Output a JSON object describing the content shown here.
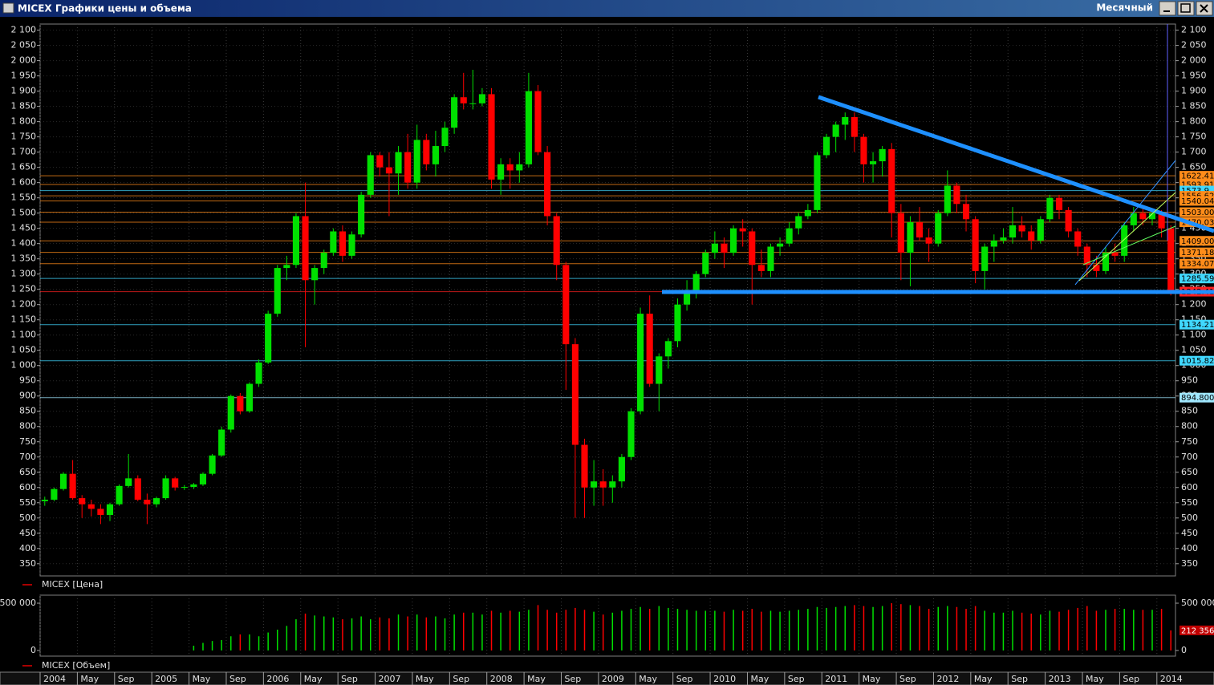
{
  "window": {
    "title": "MICEX Графики цены и объема",
    "period": "Месячный"
  },
  "chart_data": [
    {
      "type": "candlestick",
      "categories": [
        "2004",
        null,
        null,
        null,
        "May",
        null,
        null,
        null,
        "Sep",
        null,
        null,
        null,
        "2005",
        null,
        null,
        null,
        "May",
        null,
        null,
        null,
        "Sep",
        null,
        null,
        null,
        "2006",
        null,
        null,
        null,
        "May",
        null,
        null,
        null,
        "Sep",
        null,
        null,
        null,
        "2007",
        null,
        null,
        null,
        "May",
        null,
        null,
        null,
        "Sep",
        null,
        null,
        null,
        "2008",
        null,
        null,
        null,
        "May",
        null,
        null,
        null,
        "Sep",
        null,
        null,
        null,
        "2009",
        null,
        null,
        null,
        "May",
        null,
        null,
        null,
        "Sep",
        null,
        null,
        null,
        "2010",
        null,
        null,
        null,
        "May",
        null,
        null,
        null,
        "Sep",
        null,
        null,
        null,
        "2011",
        null,
        null,
        null,
        "May",
        null,
        null,
        null,
        "Sep",
        null,
        null,
        null,
        "2012",
        null,
        null,
        null,
        "May",
        null,
        null,
        null,
        "Sep",
        null,
        null,
        null,
        "2013",
        null,
        null,
        null,
        "May",
        null,
        null,
        null,
        "Sep",
        null,
        null,
        null,
        "2014",
        null
      ],
      "series": [
        {
          "name": "MICEX [Цена]",
          "color": "#e00000",
          "open": [
            555,
            560,
            595,
            645,
            565,
            545,
            530,
            510,
            545,
            605,
            630,
            560,
            545,
            565,
            630,
            600,
            602,
            610,
            645,
            705,
            790,
            900,
            850,
            940,
            1010,
            1170,
            1320,
            1330,
            1490,
            1280,
            1320,
            1370,
            1440,
            1360,
            1430,
            1560,
            1690,
            1650,
            1630,
            1700,
            1600,
            1740,
            1660,
            1720,
            1780,
            1880,
            1860,
            1860,
            1890,
            1610,
            1660,
            1640,
            1660,
            1900,
            1700,
            1490,
            1330,
            1070,
            740,
            600,
            620,
            600,
            620,
            700,
            850,
            1170,
            940,
            1030,
            1080,
            1200,
            1240,
            1300,
            1370,
            1400,
            1370,
            1450,
            1440,
            1330,
            1310,
            1390,
            1400,
            1450,
            1490,
            1510,
            1690,
            1750,
            1790,
            1815,
            1750,
            1660,
            1670,
            1710,
            1500,
            1370,
            1470,
            1420,
            1400,
            1500,
            1590,
            1530,
            1480,
            1310,
            1390,
            1410,
            1420,
            1460,
            1440,
            1410,
            1480,
            1550,
            1510,
            1440,
            1390,
            1330,
            1310,
            1370,
            1360,
            1460,
            1500,
            1480,
            1500,
            1450
          ],
          "high": [
            570,
            600,
            650,
            690,
            575,
            560,
            545,
            550,
            610,
            710,
            640,
            580,
            570,
            640,
            635,
            608,
            615,
            650,
            710,
            800,
            905,
            910,
            945,
            1020,
            1180,
            1330,
            1360,
            1500,
            1600,
            1330,
            1380,
            1450,
            1460,
            1440,
            1570,
            1700,
            1700,
            1700,
            1720,
            1760,
            1790,
            1760,
            1770,
            1800,
            1890,
            1960,
            1970,
            1910,
            1910,
            1680,
            1680,
            1700,
            1960,
            1920,
            1720,
            1500,
            1340,
            1090,
            760,
            690,
            660,
            640,
            710,
            860,
            1190,
            1230,
            1040,
            1090,
            1220,
            1280,
            1310,
            1380,
            1440,
            1420,
            1460,
            1480,
            1450,
            1380,
            1400,
            1420,
            1470,
            1500,
            1530,
            1700,
            1760,
            1800,
            1830,
            1830,
            1760,
            1700,
            1720,
            1730,
            1530,
            1490,
            1520,
            1450,
            1510,
            1640,
            1600,
            1560,
            1490,
            1400,
            1430,
            1450,
            1520,
            1490,
            1460,
            1490,
            1560,
            1560,
            1520,
            1450,
            1400,
            1360,
            1390,
            1400,
            1470,
            1520,
            1520,
            1510,
            1510,
            1460
          ],
          "low": [
            540,
            555,
            590,
            560,
            500,
            505,
            480,
            490,
            540,
            600,
            555,
            480,
            535,
            560,
            590,
            592,
            595,
            605,
            640,
            700,
            780,
            840,
            845,
            930,
            1005,
            1160,
            1280,
            1320,
            1060,
            1200,
            1300,
            1360,
            1340,
            1350,
            1420,
            1550,
            1620,
            1490,
            1560,
            1580,
            1580,
            1640,
            1620,
            1700,
            1760,
            1840,
            1840,
            1850,
            1580,
            1560,
            1580,
            1600,
            1650,
            1690,
            1460,
            1280,
            920,
            500,
            500,
            540,
            540,
            550,
            600,
            690,
            840,
            930,
            850,
            990,
            1060,
            1180,
            1220,
            1290,
            1350,
            1320,
            1360,
            1390,
            1200,
            1290,
            1290,
            1360,
            1390,
            1430,
            1480,
            1500,
            1680,
            1700,
            1740,
            1700,
            1600,
            1600,
            1620,
            1420,
            1280,
            1260,
            1410,
            1340,
            1390,
            1490,
            1500,
            1440,
            1270,
            1250,
            1340,
            1400,
            1400,
            1420,
            1380,
            1400,
            1470,
            1480,
            1420,
            1360,
            1290,
            1290,
            1300,
            1340,
            1340,
            1440,
            1460,
            1460,
            1420,
            1230
          ],
          "close": [
            560,
            595,
            645,
            565,
            545,
            530,
            510,
            545,
            605,
            630,
            560,
            545,
            565,
            630,
            600,
            602,
            610,
            645,
            705,
            790,
            900,
            850,
            940,
            1010,
            1170,
            1320,
            1330,
            1490,
            1280,
            1320,
            1370,
            1440,
            1360,
            1430,
            1560,
            1690,
            1650,
            1630,
            1700,
            1600,
            1740,
            1660,
            1720,
            1780,
            1880,
            1860,
            1860,
            1890,
            1610,
            1660,
            1640,
            1660,
            1900,
            1700,
            1490,
            1330,
            1070,
            740,
            600,
            620,
            600,
            620,
            700,
            850,
            1170,
            940,
            1030,
            1080,
            1200,
            1240,
            1300,
            1370,
            1400,
            1370,
            1450,
            1440,
            1330,
            1310,
            1390,
            1400,
            1450,
            1490,
            1510,
            1690,
            1750,
            1790,
            1815,
            1750,
            1660,
            1670,
            1710,
            1500,
            1370,
            1470,
            1420,
            1400,
            1500,
            1590,
            1530,
            1480,
            1310,
            1390,
            1410,
            1420,
            1460,
            1440,
            1410,
            1480,
            1550,
            1510,
            1440,
            1390,
            1330,
            1310,
            1370,
            1360,
            1460,
            1500,
            1480,
            1500,
            1450,
            1240
          ]
        }
      ],
      "up_color": "#00e000",
      "down_color": "#ff0000",
      "ylim": [
        310,
        2120
      ],
      "yticks": [
        350,
        400,
        450,
        500,
        550,
        600,
        650,
        700,
        750,
        800,
        850,
        900,
        950,
        {
          "value": 1000,
          "label": "1 000"
        },
        {
          "value": 1050,
          "label": "1 050"
        },
        {
          "value": 1100,
          "label": "1 100"
        },
        {
          "value": 1150,
          "label": "1 150"
        },
        {
          "value": 1200,
          "label": "1 200"
        },
        {
          "value": 1250,
          "label": "1 250"
        },
        {
          "value": 1300,
          "label": "1 300"
        },
        {
          "value": 1350,
          "label": "1 350"
        },
        {
          "value": 1400,
          "label": "1 400"
        },
        {
          "value": 1450,
          "label": "1 450"
        },
        {
          "value": 1500,
          "label": "1 500"
        },
        {
          "value": 1550,
          "label": "1 550"
        },
        {
          "value": 1600,
          "label": "1 600"
        },
        {
          "value": 1650,
          "label": "1 650"
        },
        {
          "value": 1700,
          "label": "1 700"
        },
        {
          "value": 1750,
          "label": "1 750"
        },
        {
          "value": 1800,
          "label": "1 800"
        },
        {
          "value": 1850,
          "label": "1 850"
        },
        {
          "value": 1900,
          "label": "1 900"
        },
        {
          "value": 1950,
          "label": "1 950"
        },
        {
          "value": 2000,
          "label": "2 000"
        },
        {
          "value": 2050,
          "label": "2 050"
        },
        {
          "value": 2100,
          "label": "2 100"
        }
      ],
      "grid": true,
      "levels": [
        {
          "value": 1622.41,
          "color": "#ff8c1a"
        },
        {
          "value": 1593.91,
          "color": "#ff8c1a"
        },
        {
          "value": 1573.9,
          "color": "#40d8ff"
        },
        {
          "value": 1556.62,
          "color": "#ff8c1a"
        },
        {
          "value": 1540.04,
          "color": "#ff8c1a"
        },
        {
          "value": {
            "value": 1503,
            "label": "1503.00"
          },
          "color": "#ff8c1a"
        },
        {
          "value": 1470.03,
          "color": "#ff8c1a"
        },
        {
          "value": {
            "value": 1409,
            "label": "1409.00"
          },
          "color": "#ff8c1a"
        },
        {
          "value": 1371.18,
          "color": "#ff8c1a"
        },
        {
          "value": 1334.07,
          "color": "#ff8c1a"
        },
        {
          "value": 1285.59,
          "color": "#40d8ff"
        },
        {
          "value": 1242.41,
          "color": "#ff2020"
        },
        {
          "value": 1134.21,
          "color": "#40d8ff"
        },
        {
          "value": 1015.82,
          "color": "#40d8ff"
        },
        {
          "value": {
            "value": 894.8,
            "label": "894.800"
          },
          "color": "#a0e8ff"
        }
      ]
    },
    {
      "type": "bar",
      "series": [
        {
          "name": "MICEX [Объем]",
          "color": "#e00000",
          "values": [
            null,
            null,
            null,
            null,
            null,
            null,
            null,
            null,
            null,
            null,
            null,
            null,
            null,
            null,
            null,
            null,
            50000,
            80000,
            100000,
            110000,
            150000,
            170000,
            170000,
            150000,
            190000,
            220000,
            260000,
            330000,
            390000,
            370000,
            360000,
            350000,
            330000,
            340000,
            360000,
            330000,
            350000,
            340000,
            380000,
            360000,
            380000,
            350000,
            360000,
            340000,
            380000,
            400000,
            400000,
            380000,
            420000,
            400000,
            420000,
            410000,
            430000,
            480000,
            430000,
            400000,
            430000,
            450000,
            430000,
            410000,
            380000,
            400000,
            420000,
            440000,
            460000,
            440000,
            470000,
            450000,
            440000,
            430000,
            420000,
            420000,
            420000,
            410000,
            430000,
            420000,
            440000,
            410000,
            420000,
            410000,
            420000,
            430000,
            440000,
            460000,
            450000,
            460000,
            470000,
            480000,
            470000,
            460000,
            470000,
            500000,
            490000,
            480000,
            470000,
            440000,
            460000,
            470000,
            460000,
            440000,
            470000,
            420000,
            400000,
            400000,
            420000,
            400000,
            390000,
            380000,
            420000,
            410000,
            430000,
            450000,
            470000,
            420000,
            430000,
            440000,
            440000,
            430000,
            430000,
            430000,
            440000,
            212356
          ],
          "value_labels": [
            null,
            null,
            null,
            null,
            null,
            null,
            null,
            null,
            null,
            null,
            null,
            null,
            null,
            null,
            null,
            null,
            null,
            null,
            null,
            null,
            null,
            null,
            null,
            null,
            null,
            null,
            null,
            null,
            null,
            null,
            null,
            null,
            null,
            null,
            null,
            null,
            null,
            null,
            null,
            null,
            null,
            null,
            null,
            null,
            null,
            null,
            null,
            null,
            null,
            null,
            null,
            null,
            null,
            null,
            null,
            null,
            null,
            null,
            null,
            null,
            null,
            null,
            null,
            null,
            null,
            null,
            null,
            null,
            null,
            null,
            null,
            null,
            null,
            null,
            null,
            null,
            null,
            null,
            null,
            null,
            null,
            null,
            null,
            null,
            null,
            null,
            null,
            null,
            null,
            null,
            null,
            null,
            null,
            null,
            null,
            null,
            null,
            null,
            null,
            null,
            null,
            null,
            null,
            null,
            null,
            null,
            null,
            null,
            null,
            null,
            null,
            null,
            null,
            null,
            null,
            null,
            null,
            null,
            null,
            null,
            null,
            "212 356"
          ]
        }
      ],
      "ylim": [
        -60000,
        585000
      ],
      "yticks": [
        0,
        {
          "value": 500000,
          "label": "500 000"
        }
      ]
    }
  ]
}
